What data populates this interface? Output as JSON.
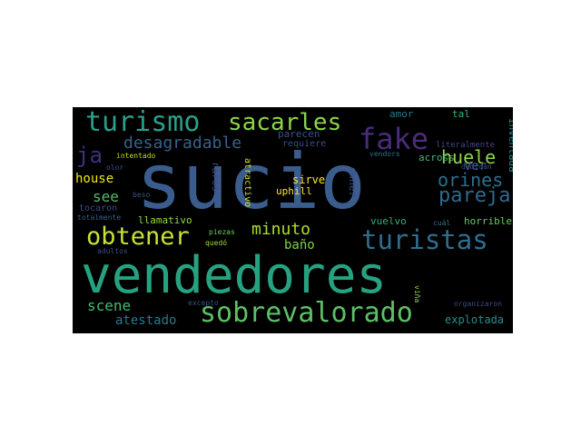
{
  "background": "#000000",
  "words": [
    {
      "text": "vendedores",
      "color": "#26a281"
    },
    {
      "text": "sucio",
      "color": "#3a5d8d"
    },
    {
      "text": "sobrevalorado",
      "color": "#5cc165"
    },
    {
      "text": "turistas",
      "color": "#2f6e8e"
    },
    {
      "text": "turismo",
      "color": "#2a9f8a"
    },
    {
      "text": "sacarles",
      "color": "#8dd449"
    },
    {
      "text": "fake",
      "color": "#4a2c7c"
    },
    {
      "text": "pareja",
      "color": "#30698e"
    },
    {
      "text": "obtener",
      "color": "#c6e138"
    },
    {
      "text": "ja",
      "color": "#3e3279"
    },
    {
      "text": "desagradable",
      "color": "#35628c"
    },
    {
      "text": "huele",
      "color": "#8ed64b"
    },
    {
      "text": "orines",
      "color": "#2d6f8e"
    },
    {
      "text": "minuto",
      "color": "#aedc30"
    },
    {
      "text": "ver",
      "color": "#3c5b8c"
    },
    {
      "text": "see",
      "color": "#4fbd6d"
    },
    {
      "text": "house",
      "color": "#f2e51d"
    },
    {
      "text": "scene",
      "color": "#3fbc73"
    },
    {
      "text": "atestado",
      "color": "#2a778e"
    },
    {
      "text": "baño",
      "color": "#7fd34e"
    },
    {
      "text": "explotada",
      "color": "#21918c"
    },
    {
      "text": "llamativo",
      "color": "#90d743"
    },
    {
      "text": "across",
      "color": "#46b47a"
    },
    {
      "text": "amor",
      "color": "#2a788e"
    },
    {
      "text": "tal",
      "color": "#35b779"
    },
    {
      "text": "inventada",
      "color": "#2c8a8d"
    },
    {
      "text": "sirve",
      "color": "#fde725"
    },
    {
      "text": "uphill",
      "color": "#fde725"
    },
    {
      "text": "raros",
      "color": "#404788"
    },
    {
      "text": "atractivo",
      "color": "#d0e11c"
    },
    {
      "text": "owner",
      "color": "#3d4e8a"
    },
    {
      "text": "vuelvo",
      "color": "#2ab07f"
    },
    {
      "text": "horrible",
      "color": "#65cb5e"
    },
    {
      "text": "parecen",
      "color": "#3b528b"
    },
    {
      "text": "requiere",
      "color": "#3e4c8a"
    },
    {
      "text": "literalmente",
      "color": "#3e4989"
    },
    {
      "text": "vendors",
      "color": "#2c728e"
    },
    {
      "text": "dedican",
      "color": "#3b528b"
    },
    {
      "text": "intentado",
      "color": "#c2df23"
    },
    {
      "text": "olor",
      "color": "#3c4f8a"
    },
    {
      "text": "beso",
      "color": "#3b528b"
    },
    {
      "text": "tocaron",
      "color": "#404688"
    },
    {
      "text": "totalmente",
      "color": "#355f8d"
    },
    {
      "text": "adultos",
      "color": "#3d4e8a"
    },
    {
      "text": "piezas",
      "color": "#6ccd5a"
    },
    {
      "text": "quedó",
      "color": "#a2da37"
    },
    {
      "text": "cuál",
      "color": "#2d708e"
    },
    {
      "text": "excepto",
      "color": "#3b528b"
    },
    {
      "text": "viña",
      "color": "#95d840"
    },
    {
      "text": "organizaron",
      "color": "#3e4a89"
    }
  ]
}
